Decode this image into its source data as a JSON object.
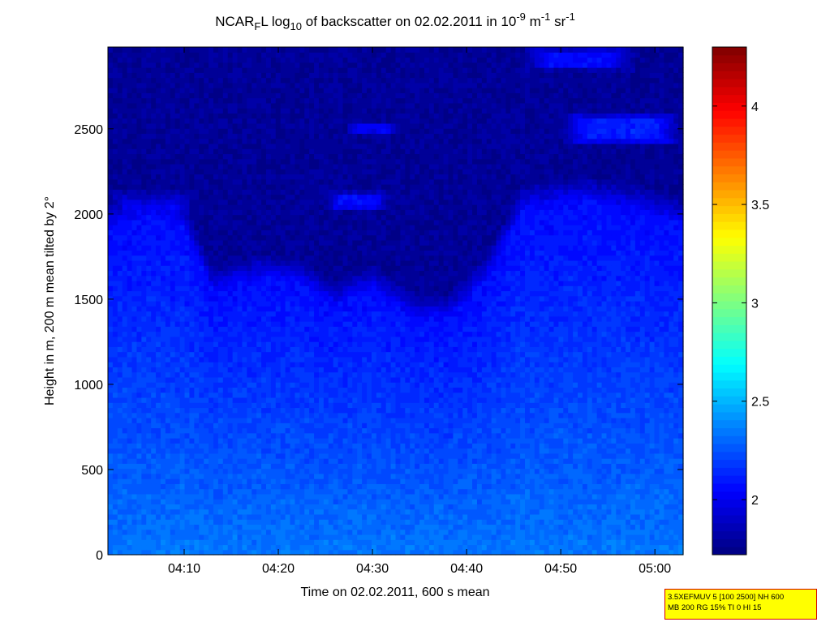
{
  "chart_data": {
    "type": "heatmap",
    "title": {
      "prefix": "NCAR",
      "sub_f": "F",
      "mid": "L log",
      "sub_10": "10",
      "rest": " of backscatter on 02.02.2011 in 10",
      "sup_exp": "-9",
      "unit_m": " m",
      "sup_m": "-1",
      "unit_sr": " sr",
      "sup_sr": "-1"
    },
    "xlabel": "Time on 02.02.2011, 600 s mean",
    "ylabel": "Height in m, 200 m mean tilted by 2°",
    "x_ticks": [
      {
        "label": "04:10",
        "minutes": 250
      },
      {
        "label": "04:20",
        "minutes": 260
      },
      {
        "label": "04:30",
        "minutes": 270
      },
      {
        "label": "04:40",
        "minutes": 280
      },
      {
        "label": "04:50",
        "minutes": 290
      },
      {
        "label": "05:00",
        "minutes": 300
      }
    ],
    "xlim": [
      241.9,
      303.0
    ],
    "y_ticks": [
      0,
      500,
      1000,
      1500,
      2000,
      2500
    ],
    "ylim": [
      0,
      2980
    ],
    "colorbar": {
      "ticks": [
        2,
        2.5,
        3,
        3.5,
        4
      ],
      "range": [
        1.72,
        4.3
      ],
      "colormap": "jet"
    },
    "features": {
      "background_value": 1.78,
      "ground_value": 2.34,
      "aerosol_layer_top_m": [
        {
          "t": 242,
          "h": 2080
        },
        {
          "t": 246,
          "h": 2150
        },
        {
          "t": 250,
          "h": 2080
        },
        {
          "t": 253,
          "h": 1700
        },
        {
          "t": 258,
          "h": 1780
        },
        {
          "t": 262,
          "h": 1760
        },
        {
          "t": 266,
          "h": 1620
        },
        {
          "t": 270,
          "h": 1720
        },
        {
          "t": 274,
          "h": 1550
        },
        {
          "t": 278,
          "h": 1540
        },
        {
          "t": 282,
          "h": 1760
        },
        {
          "t": 286,
          "h": 2180
        },
        {
          "t": 292,
          "h": 2240
        },
        {
          "t": 298,
          "h": 2180
        },
        {
          "t": 303,
          "h": 2100
        }
      ],
      "cloud_patches": [
        {
          "t0": 286,
          "t1": 298,
          "h0": 2840,
          "h1": 2980,
          "v": 2.05
        },
        {
          "t0": 290,
          "t1": 303,
          "h0": 2400,
          "h1": 2600,
          "v": 2.12
        },
        {
          "t0": 267,
          "t1": 273,
          "h0": 2460,
          "h1": 2540,
          "v": 2.0
        },
        {
          "t0": 265,
          "t1": 272,
          "h0": 2020,
          "h1": 2140,
          "v": 2.05
        },
        {
          "t0": 242,
          "t1": 251,
          "h0": 1650,
          "h1": 2150,
          "v": 2.02
        }
      ]
    }
  },
  "info_box": {
    "line1": "3.5XEFMUV 5 [100 2500] NH 600",
    "line2": "MB 200 RG 15% TI 0 HI 15"
  }
}
